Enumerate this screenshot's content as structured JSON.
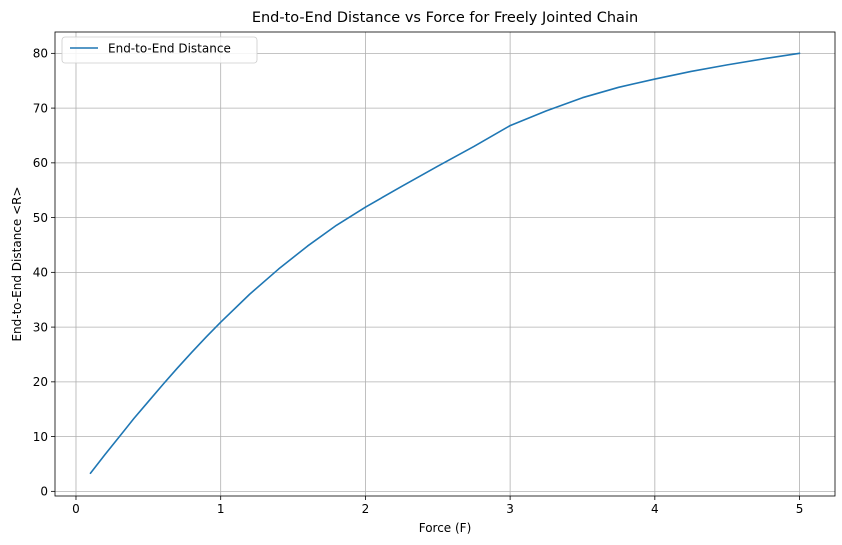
{
  "chart_data": {
    "type": "line",
    "title": "End-to-End Distance vs Force for Freely Jointed Chain",
    "xlabel": "Force (F)",
    "ylabel": "End-to-End Distance <R>",
    "xlim": [
      -0.145,
      5.245
    ],
    "ylim": [
      -0.85,
      83.9
    ],
    "xticks": [
      0,
      1,
      2,
      3,
      4,
      5
    ],
    "yticks": [
      0,
      10,
      20,
      30,
      40,
      50,
      60,
      70,
      80
    ],
    "grid": true,
    "legend_position": "top-left",
    "series": [
      {
        "name": "End-to-End Distance",
        "color": "#1f77b4",
        "x": [
          0.1,
          0.2,
          0.3,
          0.4,
          0.5,
          0.6,
          0.7,
          0.8,
          0.9,
          1.0,
          1.2,
          1.4,
          1.6,
          1.8,
          2.0,
          2.25,
          2.5,
          2.75,
          3.0,
          3.25,
          3.5,
          3.75,
          4.0,
          4.25,
          4.5,
          4.75,
          5.0
        ],
        "y": [
          3.3,
          6.7,
          10.0,
          13.3,
          16.4,
          19.5,
          22.5,
          25.4,
          28.2,
          30.9,
          36.0,
          40.6,
          44.8,
          48.6,
          51.9,
          55.7,
          59.4,
          63.0,
          66.8,
          69.5,
          71.9,
          73.8,
          75.3,
          76.7,
          77.9,
          79.0,
          80.0
        ]
      }
    ]
  }
}
